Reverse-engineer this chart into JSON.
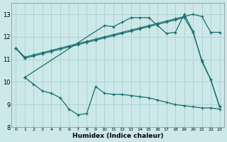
{
  "xlabel": "Humidex (Indice chaleur)",
  "bg_color": "#cce8e8",
  "grid_color": "#b0d4d4",
  "line_color": "#1a6e6e",
  "xlim": [
    -0.5,
    23.5
  ],
  "ylim": [
    8.0,
    13.5
  ],
  "xticks": [
    0,
    1,
    2,
    3,
    4,
    5,
    6,
    7,
    8,
    9,
    10,
    11,
    12,
    13,
    14,
    15,
    16,
    17,
    18,
    19,
    20,
    21,
    22,
    23
  ],
  "yticks": [
    8,
    9,
    10,
    11,
    12,
    13
  ],
  "line1_x": [
    0,
    1
  ],
  "line1_y": [
    11.5,
    11.05
  ],
  "line2_x": [
    0,
    1,
    2,
    3,
    4,
    5,
    6,
    7,
    8,
    9,
    10,
    11,
    12,
    13,
    14,
    15,
    16,
    17,
    18,
    19,
    20,
    21,
    22,
    23
  ],
  "line2_y": [
    11.5,
    11.1,
    11.2,
    11.3,
    11.4,
    11.5,
    11.6,
    11.7,
    11.8,
    11.9,
    12.0,
    12.1,
    12.2,
    12.3,
    12.4,
    12.5,
    12.6,
    12.7,
    12.8,
    12.9,
    13.0,
    12.9,
    12.2,
    12.2
  ],
  "line3_x": [
    0,
    1,
    2,
    3,
    4,
    5,
    6,
    7,
    8,
    9,
    10,
    11,
    12,
    13,
    14,
    15,
    16,
    17,
    18,
    19,
    20,
    21,
    22,
    23
  ],
  "line3_y": [
    11.5,
    11.05,
    11.15,
    11.25,
    11.35,
    11.45,
    11.55,
    11.65,
    11.75,
    11.85,
    11.95,
    12.05,
    12.15,
    12.25,
    12.35,
    12.45,
    12.55,
    12.65,
    12.75,
    12.85,
    12.2,
    10.95,
    10.1,
    8.9
  ],
  "line4_x": [
    1,
    2,
    3,
    4,
    5,
    6,
    7,
    8,
    9,
    10,
    11,
    12,
    13,
    14,
    15,
    16,
    17,
    18,
    19,
    20,
    21,
    22,
    23
  ],
  "line4_y": [
    10.2,
    9.9,
    9.6,
    9.5,
    9.3,
    8.8,
    8.55,
    8.6,
    9.8,
    9.5,
    9.45,
    9.45,
    9.4,
    9.35,
    9.3,
    9.2,
    9.1,
    9.0,
    8.95,
    8.9,
    8.85,
    8.85,
    8.8
  ],
  "lines_upper_x": [
    1,
    10,
    11,
    12,
    13,
    14,
    15,
    16,
    17,
    18,
    19,
    20,
    21,
    22,
    23
  ],
  "lines_upper_y": [
    10.2,
    12.5,
    12.45,
    12.65,
    12.85,
    12.85,
    12.85,
    12.5,
    12.15,
    12.2,
    13.0,
    12.25,
    10.9,
    10.1,
    8.9
  ]
}
